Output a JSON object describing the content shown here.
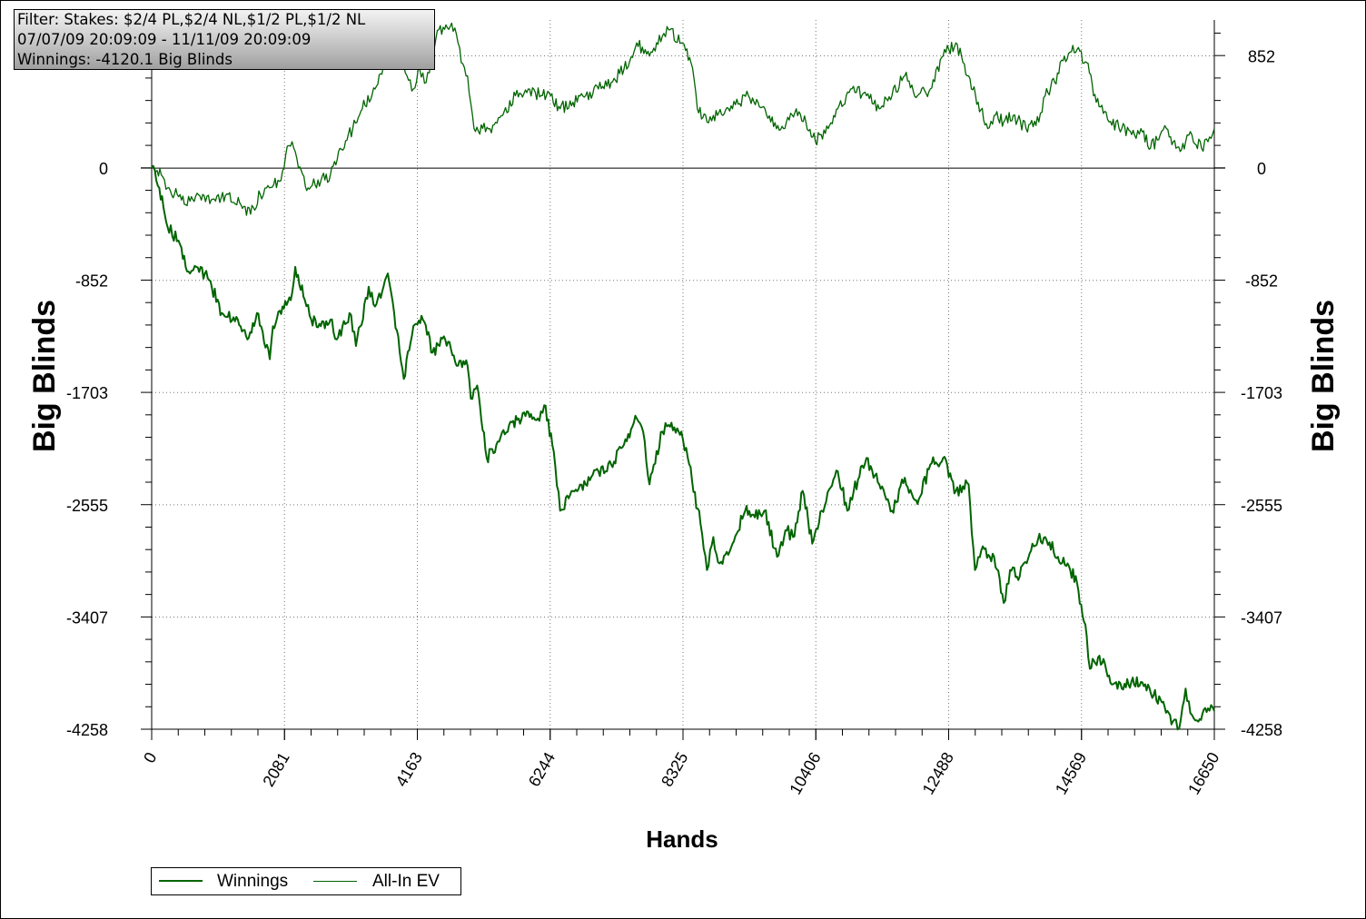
{
  "info_box": {
    "filter": "Filter: Stakes: $2/4 PL,$2/4 NL,$1/2 PL,$1/2 NL",
    "date_range": "07/07/09 20:09:09 - 11/11/09 20:09:09",
    "winnings": "Winnings: -4120.1 Big Blinds"
  },
  "legend": {
    "winnings": "Winnings",
    "allin_ev": "All-In EV"
  },
  "colors": {
    "winnings": "#006400",
    "allin_ev": "#006400"
  },
  "chart_data": {
    "type": "line",
    "xlabel": "Hands",
    "ylabel": "Big Blinds",
    "ylabel_right": "Big Blinds",
    "xlim": [
      0,
      16650
    ],
    "ylim": [
      -4258,
      1124
    ],
    "x_ticks": [
      "0",
      "2081",
      "4163",
      "6244",
      "8325",
      "10406",
      "12488",
      "14569",
      "16650"
    ],
    "y_ticks": [
      "852",
      "0",
      "-852",
      "-1703",
      "-2555",
      "-3407",
      "-4258"
    ],
    "grid": true,
    "legend_position": "bottom-left",
    "series": [
      {
        "name": "Winnings",
        "x": [
          0,
          120,
          250,
          420,
          600,
          700,
          900,
          1100,
          1350,
          1500,
          1650,
          1850,
          1900,
          2050,
          2200,
          2250,
          2400,
          2500,
          2650,
          2800,
          2900,
          3100,
          3200,
          3400,
          3500,
          3700,
          3800,
          3950,
          4100,
          4250,
          4400,
          4600,
          4800,
          4950,
          5000,
          5100,
          5250,
          5400,
          5600,
          5750,
          5900,
          6050,
          6150,
          6300,
          6400,
          6600,
          6800,
          7000,
          7200,
          7400,
          7600,
          7700,
          7800,
          8000,
          8100,
          8300,
          8400,
          8600,
          8700,
          8800,
          8900,
          9100,
          9300,
          9450,
          9600,
          9800,
          9950,
          10050,
          10200,
          10350,
          10500,
          10750,
          10900,
          11000,
          11200,
          11400,
          11600,
          11800,
          12000,
          12200,
          12400,
          12600,
          12800,
          12900,
          13000,
          13200,
          13350,
          13450,
          13600,
          13800,
          14000,
          14200,
          14350,
          14500,
          14650,
          14700,
          14850,
          15000,
          15200,
          15350,
          15500,
          15700,
          15850,
          16000,
          16100,
          16200,
          16300,
          16400,
          16550,
          16650
        ],
        "y": [
          0,
          -150,
          -450,
          -550,
          -800,
          -750,
          -850,
          -1100,
          -1150,
          -1300,
          -1100,
          -1450,
          -1200,
          -1050,
          -950,
          -750,
          -1000,
          -1150,
          -1200,
          -1150,
          -1300,
          -1100,
          -1350,
          -900,
          -1050,
          -800,
          -1100,
          -1600,
          -1200,
          -1150,
          -1400,
          -1300,
          -1500,
          -1500,
          -1750,
          -1650,
          -2200,
          -2100,
          -1950,
          -1900,
          -1850,
          -1900,
          -1800,
          -2150,
          -2600,
          -2450,
          -2400,
          -2300,
          -2250,
          -2100,
          -1900,
          -2000,
          -2400,
          -2000,
          -1950,
          -2000,
          -2200,
          -2700,
          -3050,
          -2800,
          -3000,
          -2850,
          -2600,
          -2650,
          -2600,
          -2950,
          -2750,
          -2800,
          -2450,
          -2850,
          -2600,
          -2300,
          -2600,
          -2450,
          -2200,
          -2400,
          -2600,
          -2350,
          -2550,
          -2250,
          -2200,
          -2450,
          -2400,
          -3050,
          -2900,
          -2950,
          -3300,
          -3050,
          -3100,
          -2850,
          -2800,
          -2950,
          -3000,
          -3150,
          -3550,
          -3800,
          -3700,
          -3850,
          -3950,
          -3900,
          -3900,
          -4000,
          -4050,
          -4200,
          -4250,
          -3950,
          -4150,
          -4200,
          -4100,
          -4120
        ]
      },
      {
        "name": "All-In EV",
        "x": [
          0,
          150,
          250,
          400,
          600,
          800,
          1000,
          1200,
          1400,
          1550,
          1700,
          1800,
          2000,
          2100,
          2200,
          2300,
          2450,
          2650,
          2800,
          2950,
          3150,
          3300,
          3500,
          3650,
          3800,
          3900,
          4000,
          4100,
          4200,
          4300,
          4400,
          4500,
          4700,
          4800,
          4850,
          4950,
          5050,
          5300,
          5500,
          5700,
          5900,
          6100,
          6250,
          6400,
          6600,
          6800,
          7000,
          7200,
          7400,
          7600,
          7800,
          8000,
          8100,
          8300,
          8450,
          8550,
          8700,
          8800,
          8950,
          9100,
          9350,
          9500,
          9700,
          9900,
          10100,
          10250,
          10400,
          10600,
          10750,
          10950,
          11200,
          11400,
          11600,
          11800,
          12000,
          12200,
          12400,
          12600,
          12800,
          12950,
          13100,
          13200,
          13350,
          13500,
          13700,
          13900,
          14000,
          14150,
          14300,
          14500,
          14650,
          14800,
          15000,
          15200,
          15400,
          15500,
          15650,
          15800,
          15900,
          16050,
          16200,
          16300,
          16450,
          16550,
          16650
        ],
        "y": [
          0,
          -50,
          -150,
          -200,
          -250,
          -200,
          -250,
          -200,
          -280,
          -350,
          -200,
          -150,
          -100,
          100,
          200,
          0,
          -150,
          -100,
          -50,
          150,
          300,
          450,
          600,
          750,
          900,
          800,
          700,
          600,
          750,
          650,
          850,
          1050,
          1100,
          950,
          800,
          700,
          300,
          300,
          400,
          550,
          600,
          550,
          550,
          450,
          500,
          550,
          600,
          650,
          750,
          950,
          850,
          1000,
          1050,
          950,
          800,
          450,
          350,
          400,
          400,
          450,
          550,
          500,
          350,
          300,
          450,
          350,
          200,
          300,
          450,
          600,
          550,
          450,
          550,
          700,
          550,
          600,
          850,
          950,
          700,
          500,
          300,
          400,
          350,
          400,
          300,
          350,
          550,
          650,
          850,
          900,
          800,
          500,
          350,
          300,
          250,
          300,
          150,
          250,
          300,
          150,
          200,
          250,
          150,
          200,
          300
        ]
      }
    ]
  }
}
